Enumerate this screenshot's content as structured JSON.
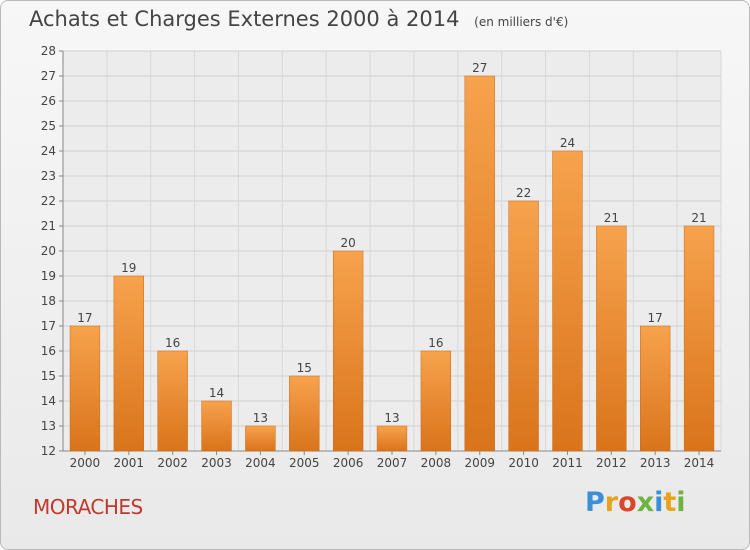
{
  "header": {
    "title": "Achats et Charges Externes 2000 à 2014",
    "subtitle": "(en milliers d'€)"
  },
  "commune": "MORACHES",
  "logo": {
    "letters": [
      "P",
      "r",
      "o",
      "x",
      "i",
      "t",
      "i"
    ],
    "colors": [
      "#3b8fd6",
      "#e8a31b",
      "#d9462b",
      "#6cb33f",
      "#3b8fd6",
      "#e8a31b",
      "#6cb33f"
    ]
  },
  "colors": {
    "bar_top": "#f7a24d",
    "bar_bottom": "#d9741b",
    "title": "#444444",
    "commune": "#c0392b"
  },
  "chart_data": {
    "type": "bar",
    "categories": [
      "2000",
      "2001",
      "2002",
      "2003",
      "2004",
      "2005",
      "2006",
      "2007",
      "2008",
      "2009",
      "2010",
      "2011",
      "2012",
      "2013",
      "2014"
    ],
    "values": [
      17,
      19,
      16,
      14,
      13,
      15,
      20,
      13,
      16,
      27,
      22,
      24,
      21,
      17,
      21
    ],
    "ylim": [
      12,
      28
    ],
    "yticks": [
      12,
      13,
      14,
      15,
      16,
      17,
      18,
      19,
      20,
      21,
      22,
      23,
      24,
      25,
      26,
      27,
      28
    ],
    "grid": true
  }
}
